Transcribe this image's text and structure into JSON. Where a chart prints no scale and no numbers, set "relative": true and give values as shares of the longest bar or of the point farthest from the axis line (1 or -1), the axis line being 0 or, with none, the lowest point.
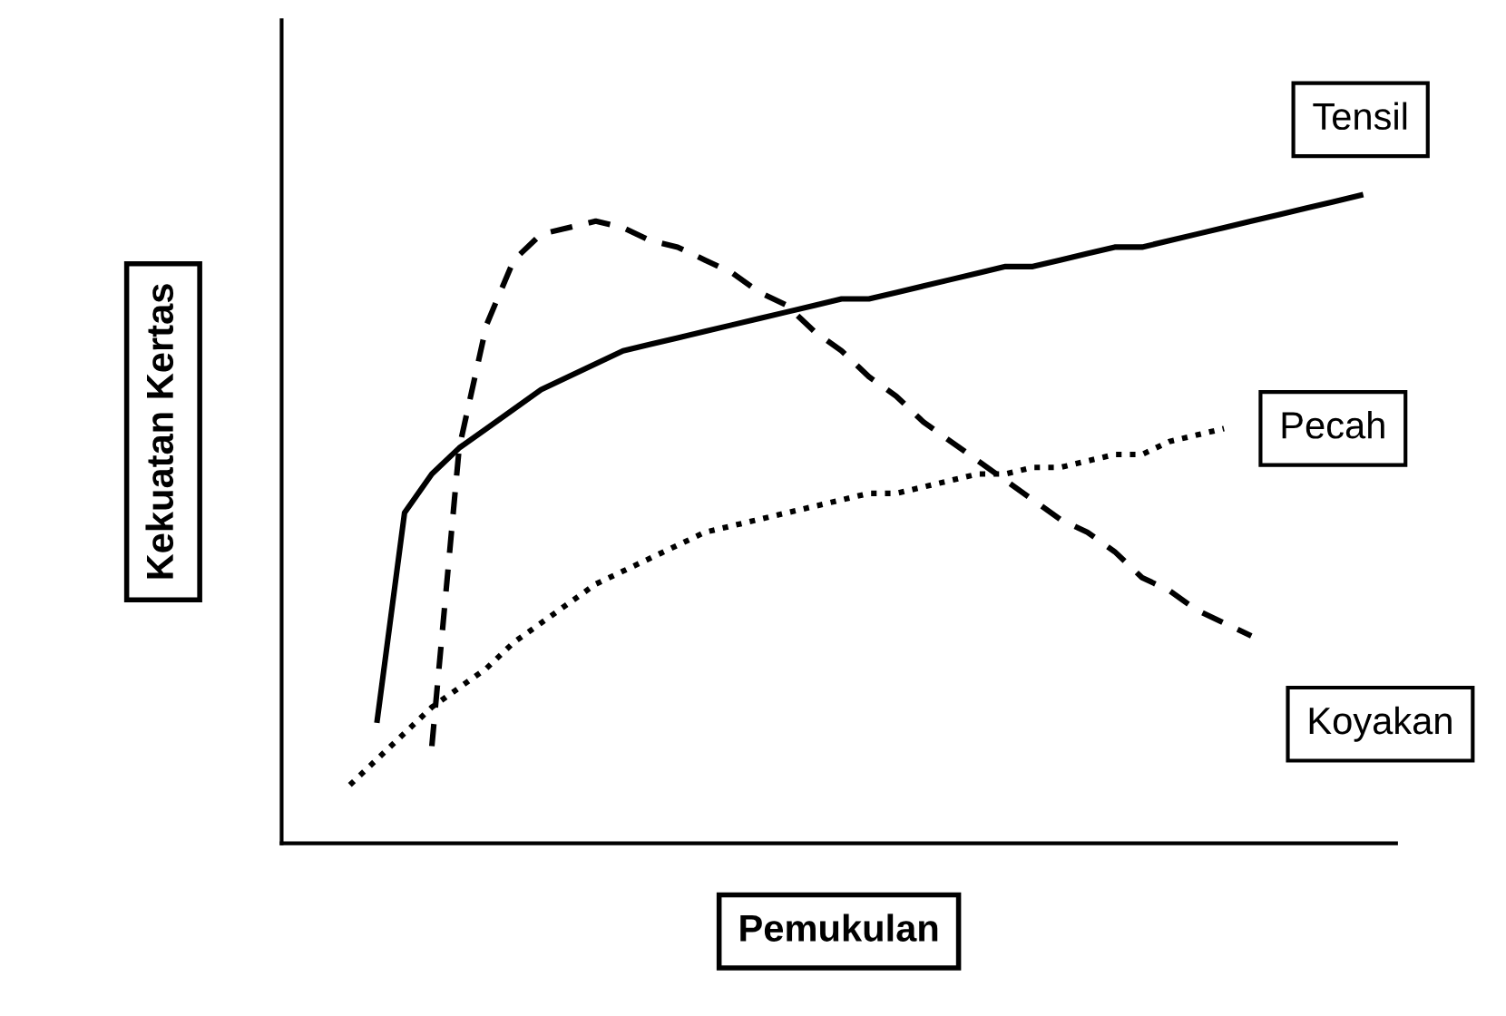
{
  "chart_data": {
    "type": "line",
    "relative": true,
    "xlabel": "Pemukulan",
    "ylabel": "Kekuatan Kertas",
    "legend": false,
    "marker": "none",
    "categories": [
      null,
      null,
      null,
      null,
      null,
      null,
      null,
      null,
      null,
      null,
      null,
      null,
      null,
      null,
      null,
      null,
      null,
      null,
      null,
      null,
      null,
      null,
      null,
      null,
      null,
      null,
      null,
      null,
      null,
      null,
      null,
      null,
      null,
      null,
      null,
      null,
      null,
      null,
      null,
      null
    ],
    "series": [
      {
        "name": "Tensil",
        "color": "#000000",
        "line_style": "solid",
        "values": [
          null,
          null,
          null,
          0.19,
          0.51,
          0.57,
          0.61,
          0.64,
          0.67,
          0.7,
          0.72,
          0.74,
          0.76,
          0.77,
          0.78,
          0.79,
          0.8,
          0.81,
          0.82,
          0.83,
          0.84,
          0.84,
          0.85,
          0.86,
          0.87,
          0.88,
          0.89,
          0.89,
          0.9,
          0.91,
          0.92,
          0.92,
          0.93,
          0.94,
          0.95,
          0.96,
          0.97,
          0.98,
          0.99,
          1.0
        ]
      },
      {
        "name": "Pecah",
        "color": "#000000",
        "line_style": "dotted",
        "values": [
          null,
          null,
          0.09,
          0.13,
          0.17,
          0.21,
          0.24,
          0.27,
          0.31,
          0.34,
          0.37,
          0.4,
          0.42,
          0.44,
          0.46,
          0.48,
          0.49,
          0.5,
          0.51,
          0.52,
          0.53,
          0.54,
          0.54,
          0.55,
          0.56,
          0.57,
          0.57,
          0.58,
          0.58,
          0.59,
          0.6,
          0.6,
          0.62,
          0.63,
          0.64,
          null,
          null,
          null,
          null,
          null
        ]
      },
      {
        "name": "Koyakan",
        "color": "#000000",
        "line_style": "dashed",
        "values": [
          null,
          null,
          null,
          null,
          null,
          0.15,
          0.61,
          0.8,
          0.9,
          0.94,
          0.95,
          0.96,
          0.95,
          0.93,
          0.92,
          0.9,
          0.88,
          0.85,
          0.83,
          0.79,
          0.76,
          0.72,
          0.69,
          0.65,
          0.62,
          0.59,
          0.56,
          0.53,
          0.5,
          0.48,
          0.45,
          0.41,
          0.39,
          0.36,
          0.34,
          0.32,
          null,
          null,
          null,
          null
        ]
      }
    ]
  }
}
